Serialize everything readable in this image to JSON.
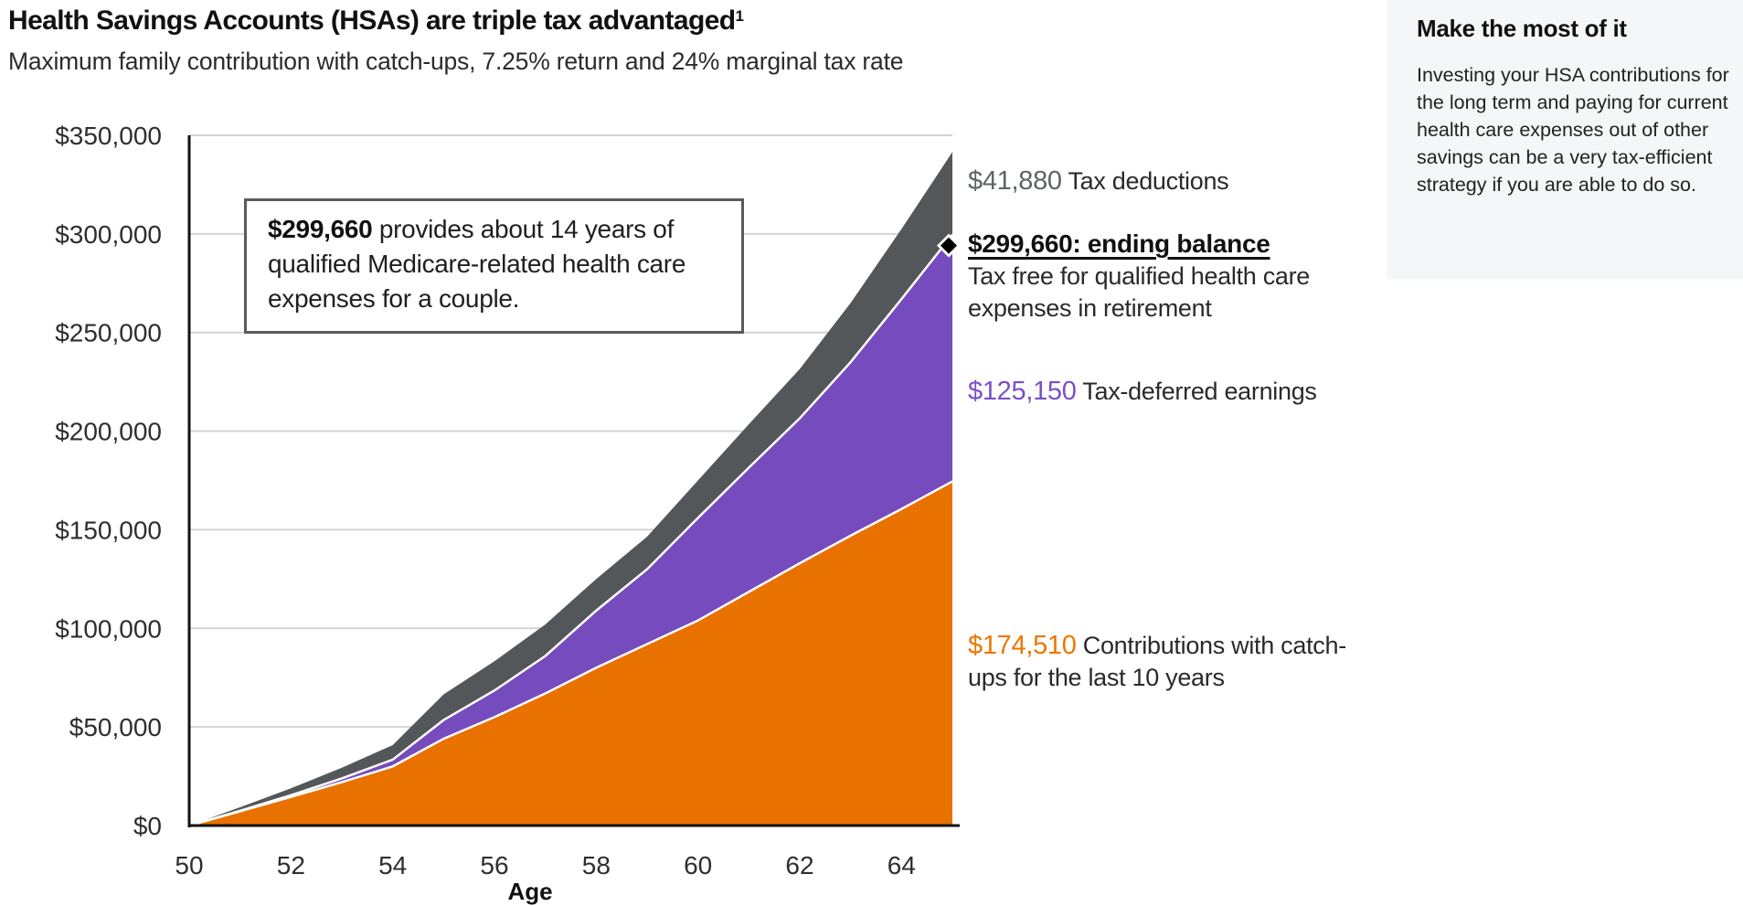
{
  "header": {
    "title": "Health Savings Accounts (HSAs) are triple tax advantaged",
    "title_footnote": "1",
    "subtitle": "Maximum family contribution with catch-ups, 7.25% return and 24% marginal tax rate"
  },
  "callout": {
    "amount": "$299,660",
    "text": " provides about 14 years of qualified Medicare-related health care expenses for a couple."
  },
  "annotations": {
    "tax_deductions": {
      "value": "$41,880",
      "label": " Tax deductions"
    },
    "ending_balance": {
      "heading": "$299,660: ending balance",
      "description": "Tax free for qualified health care expenses in retirement",
      "marker_icon": "diamond-icon"
    },
    "earnings": {
      "value": "$125,150",
      "label": " Tax-deferred earnings"
    },
    "contributions": {
      "value": "$174,510",
      "label": " Contributions with catch-ups for the last 10 years"
    }
  },
  "sidebar": {
    "heading": "Make the most of it",
    "body": "Investing your HSA contributions for the long term and paying for current health care expenses out of other savings can be a very tax-efficient strategy if you are able to do so."
  },
  "colors": {
    "contributions": "#E87100",
    "earnings": "#764BBD",
    "tax_deductions": "#53575A",
    "gridline": "#d4d4d4",
    "axis": "#111111"
  },
  "chart_data": {
    "type": "area",
    "stacked": true,
    "title": "Health Savings Accounts (HSAs) are triple tax advantaged",
    "subtitle": "Maximum family contribution with catch-ups, 7.25% return and 24% marginal tax rate",
    "xlabel": "Age",
    "ylabel": "",
    "x": [
      50,
      51,
      52,
      53,
      54,
      55,
      56,
      57,
      58,
      59,
      60,
      61,
      62,
      63,
      64,
      65
    ],
    "xlim": [
      50,
      65
    ],
    "ylim": [
      0,
      350000
    ],
    "xticks": [
      50,
      52,
      54,
      56,
      58,
      60,
      62,
      64
    ],
    "yticks": [
      0,
      50000,
      100000,
      150000,
      200000,
      250000,
      300000,
      350000
    ],
    "ytick_labels": [
      "$0",
      "$50,000",
      "$100,000",
      "$150,000",
      "$200,000",
      "$250,000",
      "$300,000",
      "$350,000"
    ],
    "grid": true,
    "legend": "none (inline labels right)",
    "series": [
      {
        "name": "Contributions with catch-ups",
        "values": [
          0,
          7200,
          14500,
          22000,
          30000,
          44000,
          55000,
          67000,
          80000,
          92000,
          104000,
          118500,
          133000,
          147000,
          160500,
          174510
        ]
      },
      {
        "name": "Tax-deferred earnings",
        "values": [
          0,
          300,
          900,
          1900,
          3400,
          9500,
          13500,
          19000,
          29000,
          38000,
          52000,
          63000,
          73500,
          88000,
          106500,
          125150
        ]
      },
      {
        "name": "Tax deductions",
        "values": [
          0,
          1800,
          3500,
          5400,
          7400,
          13000,
          14800,
          16000,
          16000,
          16500,
          19000,
          22000,
          25000,
          30000,
          35500,
          41880
        ]
      }
    ],
    "totals_at_65": {
      "ending_balance": 299660,
      "with_tax_deductions": 341540
    }
  }
}
